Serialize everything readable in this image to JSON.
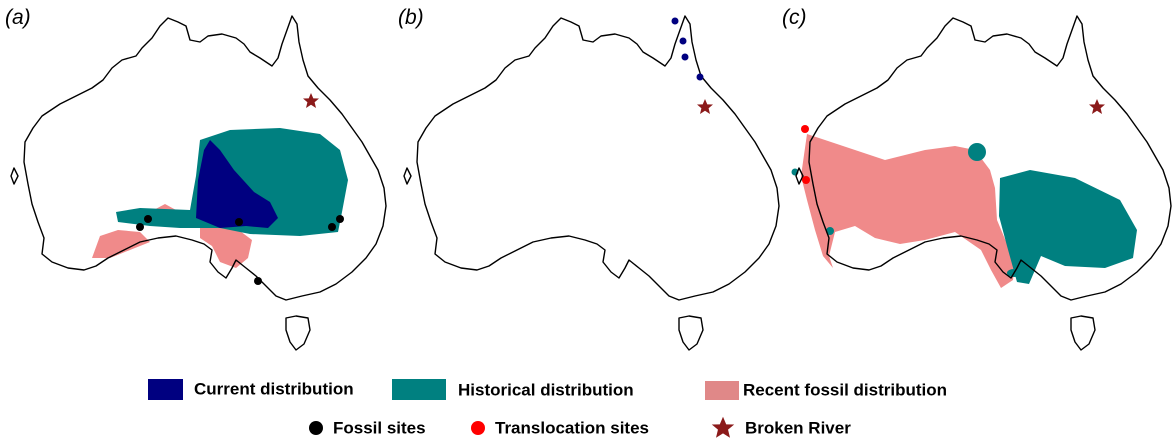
{
  "panels": [
    {
      "label": "(a)"
    },
    {
      "label": "(b)"
    },
    {
      "label": "(c)"
    }
  ],
  "legend": [
    {
      "label": "Current distribution"
    },
    {
      "label": "Historical distribution"
    },
    {
      "label": "Recent fossil distribution"
    },
    {
      "label": "Fossil sites"
    },
    {
      "label": "Translocation sites"
    },
    {
      "label": "Broken River"
    }
  ]
}
